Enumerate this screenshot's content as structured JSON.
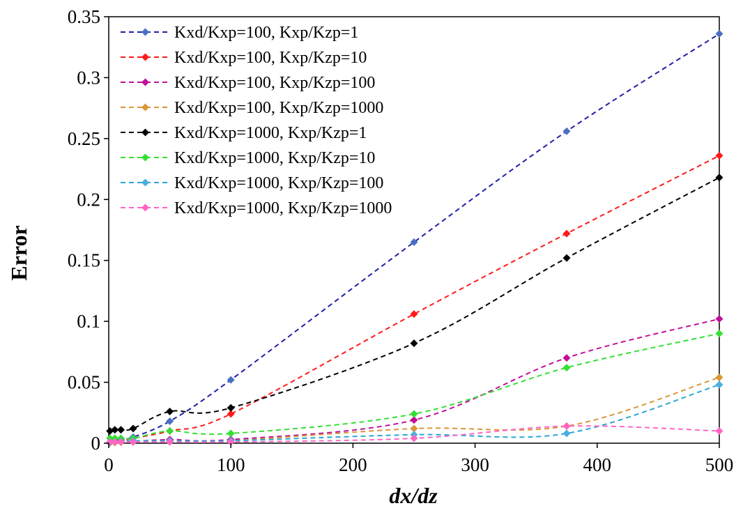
{
  "chart_data": {
    "type": "line",
    "title": "",
    "xlabel": "dx/dz",
    "ylabel": "Error",
    "xlim": [
      0,
      500
    ],
    "ylim": [
      0,
      0.35
    ],
    "x_ticks": [
      0,
      100,
      200,
      300,
      400,
      500
    ],
    "y_ticks": [
      0,
      0.05,
      0.1,
      0.15,
      0.2,
      0.25,
      0.3,
      0.35
    ],
    "grid": false,
    "legend_position": "top-left",
    "line_style": "dashed",
    "marker": "diamond",
    "x": [
      1,
      5,
      10,
      20,
      50,
      100,
      250,
      375,
      500
    ],
    "series": [
      {
        "name": "Kxd/Kxp=100, Kxp/Kzp=1",
        "color": "#1f1fa8",
        "marker_color": "#4a6fc4",
        "values": [
          0.001,
          0.002,
          0.003,
          0.005,
          0.018,
          0.052,
          0.165,
          0.256,
          0.336
        ]
      },
      {
        "name": "Kxd/Kxp=100,  Kxp/Kzp=10",
        "color": "#ff1a1a",
        "marker_color": "#ff1a1a",
        "values": [
          0.0005,
          0.001,
          0.002,
          0.004,
          0.01,
          0.024,
          0.106,
          0.172,
          0.236
        ]
      },
      {
        "name": "Kxd/Kxp=100, Kxp/Kzp=100",
        "color": "#c0109a",
        "marker_color": "#c0109a",
        "values": [
          0.0005,
          0.0008,
          0.001,
          0.0015,
          0.003,
          0.003,
          0.019,
          0.07,
          0.102
        ]
      },
      {
        "name": "Kxd/Kxp=100, Kxp/Kzp=1000",
        "color": "#d9963a",
        "marker_color": "#d9963a",
        "values": [
          0.0002,
          0.0005,
          0.0008,
          0.001,
          0.002,
          0.002,
          0.012,
          0.014,
          0.054
        ]
      },
      {
        "name": "Kxd/Kxp=1000, Kxp/Kzp=1",
        "color": "#000000",
        "marker_color": "#000000",
        "values": [
          0.01,
          0.011,
          0.011,
          0.012,
          0.026,
          0.029,
          0.082,
          0.152,
          0.218
        ]
      },
      {
        "name": "Kxd/Kxp=1000, Kxp/Kzp=10",
        "color": "#33e033",
        "marker_color": "#33e033",
        "values": [
          0.004,
          0.004,
          0.004,
          0.004,
          0.01,
          0.008,
          0.024,
          0.062,
          0.09
        ]
      },
      {
        "name": "Kxd/Kxp=1000, Kxp/Kzp=100",
        "color": "#2aa6d6",
        "marker_color": "#4ab0e0",
        "values": [
          0.0005,
          0.001,
          0.0015,
          0.002,
          0.002,
          0.002,
          0.007,
          0.008,
          0.048
        ]
      },
      {
        "name": "Kxd/Kxp=1000, Kxp/Kzp=1000",
        "color": "#ff66c4",
        "marker_color": "#ff66c4",
        "values": [
          0.001,
          0.001,
          0.001,
          0.001,
          0.001,
          0.001,
          0.004,
          0.014,
          0.01
        ]
      }
    ]
  }
}
